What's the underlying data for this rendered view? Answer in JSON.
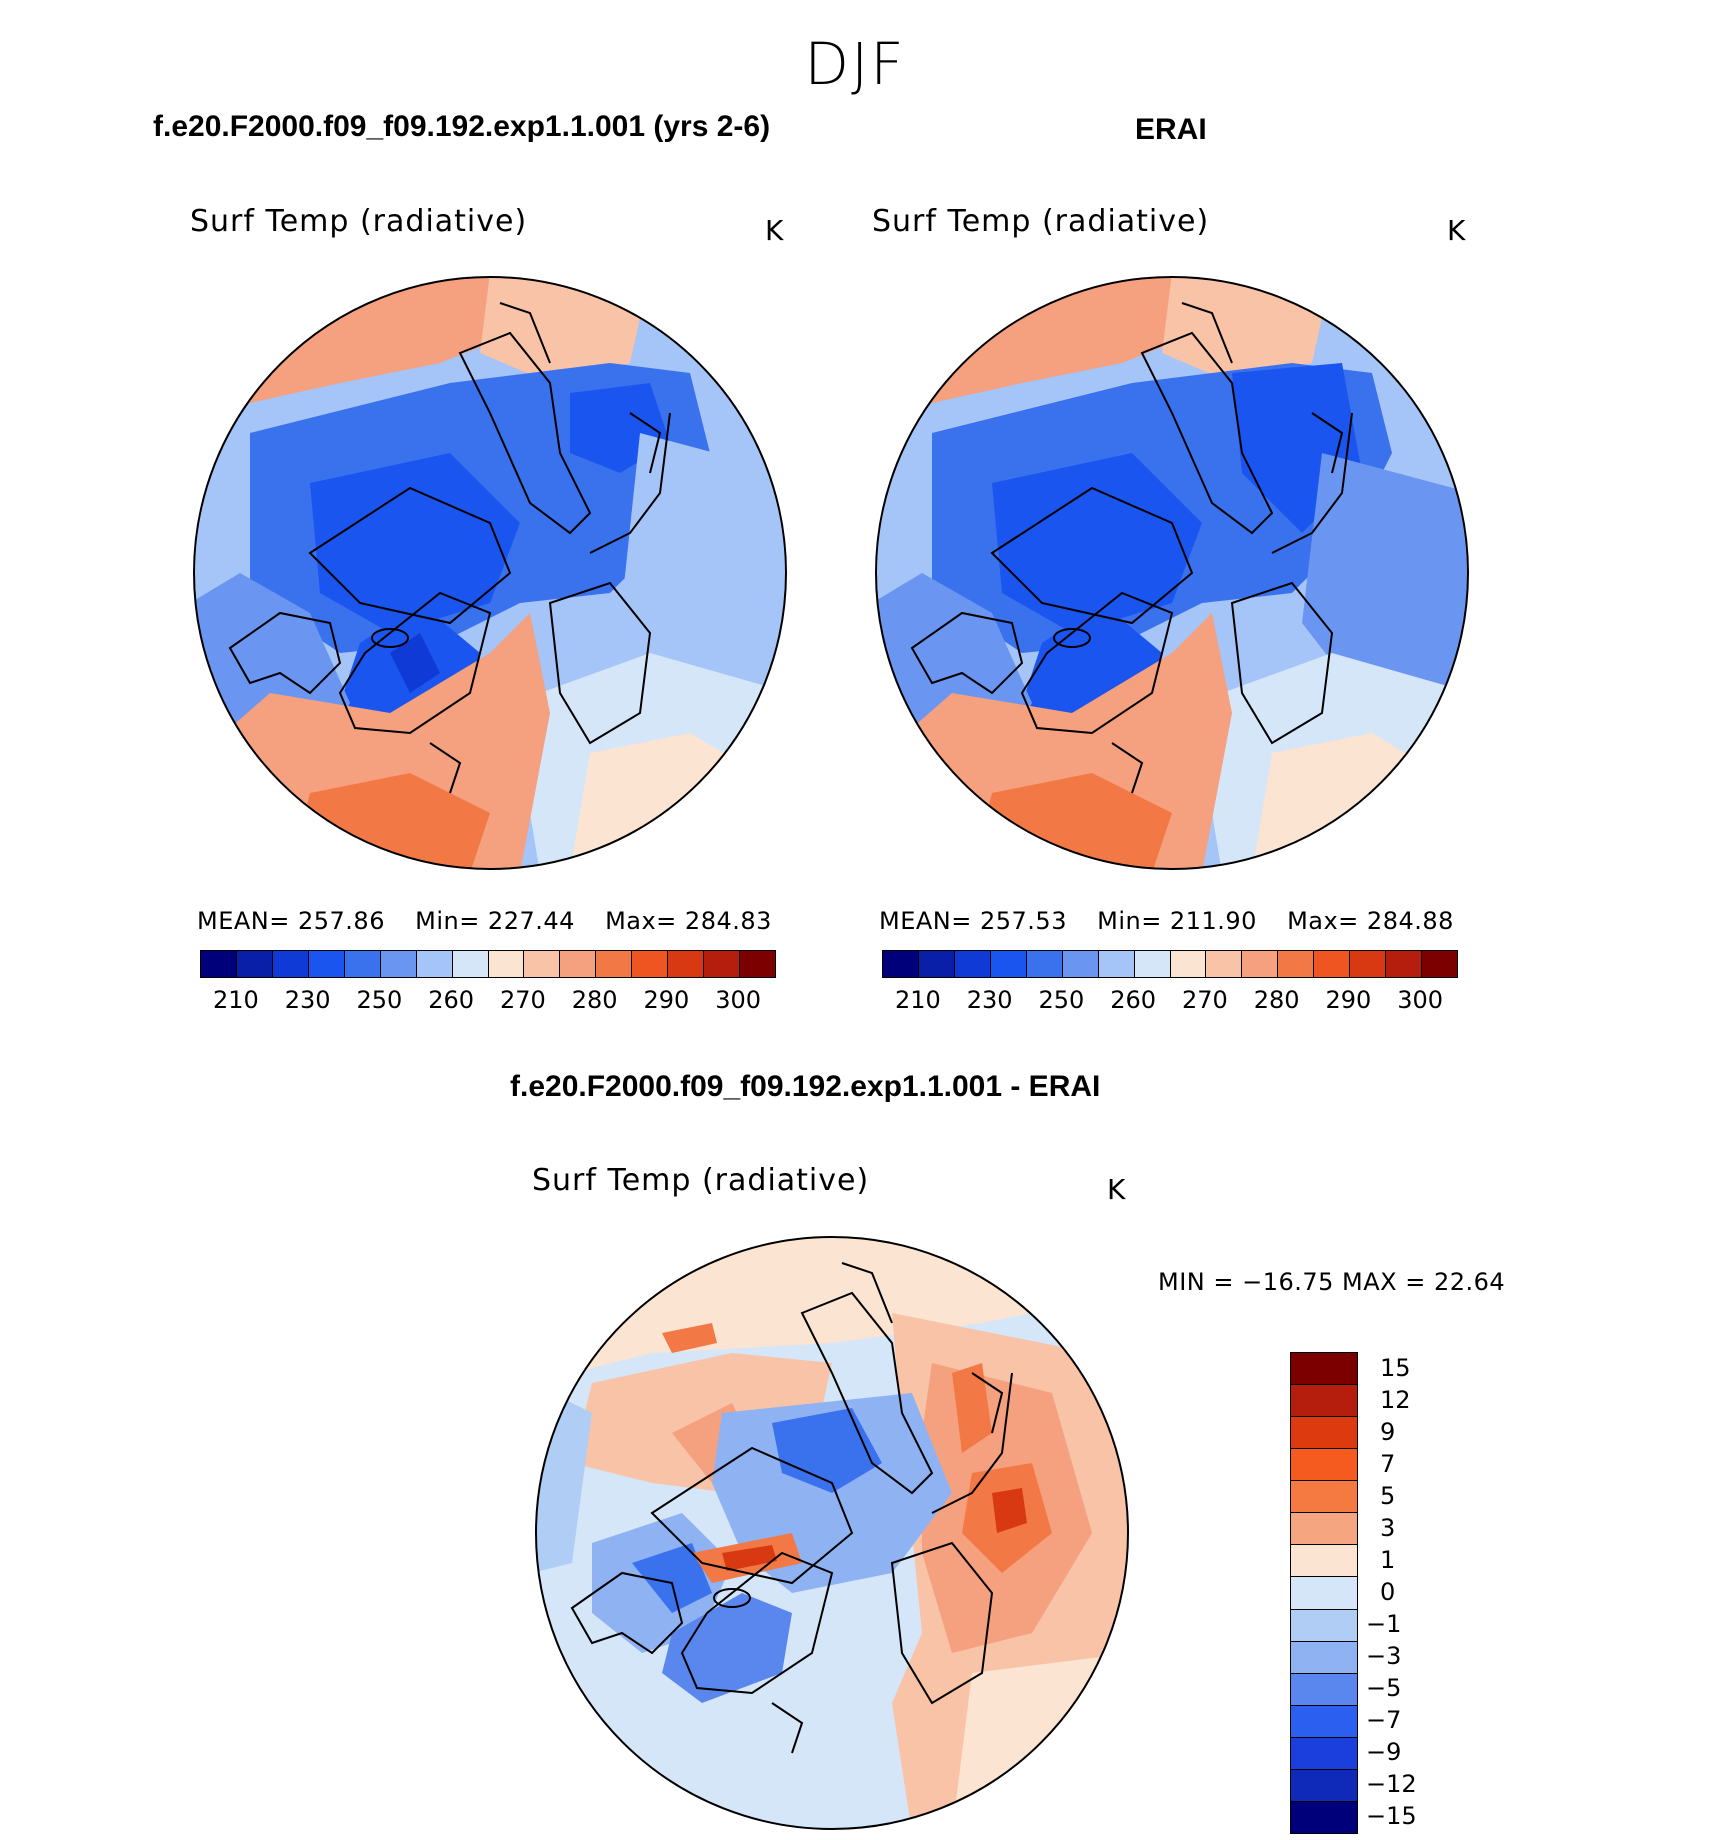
{
  "season": "DJF",
  "panels": {
    "model": {
      "case_title": "f.e20.F2000.f09_f09.192.exp1.1.001 (yrs 2-6)",
      "var_title": "Surf Temp (radiative)",
      "unit": "K",
      "mean": "MEAN= 257.86",
      "min": "Min= 227.44",
      "max": "Max= 284.83"
    },
    "obs": {
      "case_title": "ERAI",
      "var_title": "Surf Temp (radiative)",
      "unit": "K",
      "mean": "MEAN= 257.53",
      "min": "Min= 211.90",
      "max": "Max= 284.88"
    },
    "diff": {
      "case_title": "f.e20.F2000.f09_f09.192.exp1.1.001 - ERAI",
      "var_title": "Surf Temp (radiative)",
      "unit": "K",
      "minmax": "MIN = −16.75 MAX =   22.64"
    }
  },
  "abs_colorbar": {
    "colors": [
      "#00007a",
      "#0a1fa8",
      "#0f3ad6",
      "#1a55f0",
      "#3a72ee",
      "#6a96f2",
      "#a5c4f7",
      "#d6e6f9",
      "#fbe4d2",
      "#f8c3a7",
      "#f5a07e",
      "#f27846",
      "#ee5521",
      "#d83812",
      "#b51d0c",
      "#7d0000"
    ],
    "ticks": [
      "210",
      "230",
      "250",
      "260",
      "270",
      "280",
      "290",
      "300"
    ]
  },
  "diff_colorbar": {
    "colors": [
      "#7d0000",
      "#b51d0c",
      "#dd3a10",
      "#f55a1e",
      "#f47a42",
      "#f5a57f",
      "#fbe4d2",
      "#d6e6f9",
      "#b0cdf6",
      "#8fb2f3",
      "#5a87ee",
      "#2a5ff0",
      "#1a3fdc",
      "#0f2ab8",
      "#00007a"
    ],
    "ticks": [
      "15",
      "12",
      "9",
      "7",
      "5",
      "3",
      "1",
      "0",
      "−1",
      "−3",
      "−5",
      "−7",
      "−9",
      "−12",
      "−15"
    ]
  }
}
